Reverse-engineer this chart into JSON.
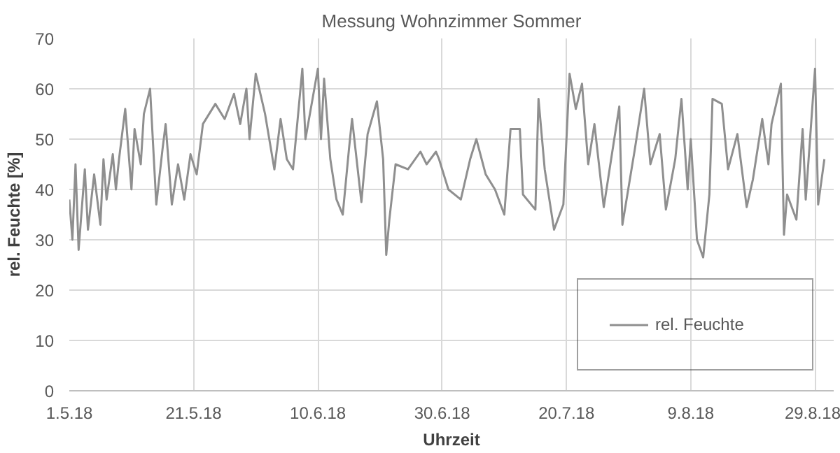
{
  "chart_data": {
    "type": "line",
    "title": "Messung Wohnzimmer Sommer",
    "xlabel": "Uhrzeit",
    "ylabel": "rel. Feuchte [%]",
    "x": [
      "2018-05-01",
      "2018-05-01T12:00",
      "2018-05-02",
      "2018-05-02T12:00",
      "2018-05-03T12:00",
      "2018-05-04",
      "2018-05-05",
      "2018-05-06",
      "2018-05-06T12:00",
      "2018-05-07",
      "2018-05-08",
      "2018-05-08T12:00",
      "2018-05-09",
      "2018-05-10",
      "2018-05-11",
      "2018-05-11T12:00",
      "2018-05-12T12:00",
      "2018-05-13",
      "2018-05-14",
      "2018-05-15",
      "2018-05-16",
      "2018-05-16T12:00",
      "2018-05-17T12:00",
      "2018-05-18T12:00",
      "2018-05-19T12:00",
      "2018-05-20T12:00",
      "2018-05-21T12:00",
      "2018-05-22T12:00",
      "2018-05-24T12:00",
      "2018-05-26",
      "2018-05-27T12:00",
      "2018-05-28T12:00",
      "2018-05-29T12:00",
      "2018-05-30",
      "2018-05-31",
      "2018-06-01T12:00",
      "2018-06-03",
      "2018-06-04",
      "2018-06-05",
      "2018-06-06",
      "2018-06-07T12:00",
      "2018-06-08",
      "2018-06-10",
      "2018-06-10T12:00",
      "2018-06-11",
      "2018-06-12",
      "2018-06-13",
      "2018-06-14",
      "2018-06-15",
      "2018-06-15T12:00",
      "2018-06-17",
      "2018-06-18",
      "2018-06-19T12:00",
      "2018-06-20T12:00",
      "2018-06-21",
      "2018-06-21T12:00",
      "2018-06-22T12:00",
      "2018-06-24T12:00",
      "2018-06-26T12:00",
      "2018-06-27T12:00",
      "2018-06-29",
      "2018-06-29T12:00",
      "2018-07-01",
      "2018-07-03",
      "2018-07-04T12:00",
      "2018-07-05T12:00",
      "2018-07-07",
      "2018-07-08T12:00",
      "2018-07-10",
      "2018-07-11",
      "2018-07-12T12:00",
      "2018-07-13",
      "2018-07-15",
      "2018-07-15T12:00",
      "2018-07-16T12:00",
      "2018-07-18",
      "2018-07-19T12:00",
      "2018-07-20T12:00",
      "2018-07-21T12:00",
      "2018-07-22T12:00",
      "2018-07-23T12:00",
      "2018-07-24T12:00",
      "2018-07-26",
      "2018-07-28T12:00",
      "2018-07-29",
      "2018-07-31",
      "2018-08-01T12:00",
      "2018-08-02T12:00",
      "2018-08-04",
      "2018-08-05",
      "2018-08-06T12:00",
      "2018-08-07T12:00",
      "2018-08-08T12:00",
      "2018-08-09",
      "2018-08-10",
      "2018-08-11",
      "2018-08-12",
      "2018-08-12T12:00",
      "2018-08-14",
      "2018-08-15",
      "2018-08-16T12:00",
      "2018-08-18",
      "2018-08-19",
      "2018-08-20T12:00",
      "2018-08-21T12:00",
      "2018-08-22",
      "2018-08-23T12:00",
      "2018-08-24",
      "2018-08-24T12:00",
      "2018-08-26",
      "2018-08-27",
      "2018-08-27T12:00",
      "2018-08-29",
      "2018-08-29T12:00",
      "2018-08-30T12:00"
    ],
    "series": [
      {
        "name": "rel. Feuchte",
        "color": "#8f8f8f",
        "values": [
          38,
          30,
          45,
          28,
          44,
          32,
          43,
          33,
          46,
          38,
          47,
          40,
          46,
          56,
          40,
          52,
          45,
          55,
          60,
          37,
          48,
          53,
          37,
          45,
          38,
          47,
          43,
          53,
          57,
          54,
          59,
          53,
          60,
          50,
          63,
          55,
          44,
          54,
          46,
          44,
          64,
          50,
          64,
          50,
          62,
          46,
          38,
          35,
          48,
          54,
          37.5,
          51,
          57.5,
          46,
          27,
          34,
          45,
          44,
          47.5,
          45,
          47.5,
          46,
          40,
          38,
          46,
          50,
          43,
          40,
          35,
          52,
          52,
          39,
          36,
          58,
          44,
          32,
          37,
          63,
          56,
          61,
          45,
          53,
          36.5,
          56.5,
          33,
          48,
          60,
          45,
          51,
          36,
          46,
          58,
          40,
          50,
          30,
          26.5,
          39,
          58,
          57,
          44,
          51,
          36.5,
          42,
          54,
          45,
          53,
          61,
          31,
          39,
          34,
          52,
          38,
          64,
          37,
          46
        ]
      }
    ],
    "xlim": [
      "2018-05-01",
      "2018-09-01"
    ],
    "xticks": [
      {
        "value": "2018-05-01",
        "label": "1.5.18"
      },
      {
        "value": "2018-05-21",
        "label": "21.5.18"
      },
      {
        "value": "2018-06-10",
        "label": "10.6.18"
      },
      {
        "value": "2018-06-30",
        "label": "30.6.18"
      },
      {
        "value": "2018-07-20",
        "label": "20.7.18"
      },
      {
        "value": "2018-08-09",
        "label": "9.8.18"
      },
      {
        "value": "2018-08-29",
        "label": "29.8.18"
      }
    ],
    "ylim": [
      0,
      70
    ],
    "yticks": [
      0,
      10,
      20,
      30,
      40,
      50,
      60,
      70
    ],
    "grid": true,
    "legend": "bottom right",
    "line_style": "solid",
    "marker": "none"
  }
}
